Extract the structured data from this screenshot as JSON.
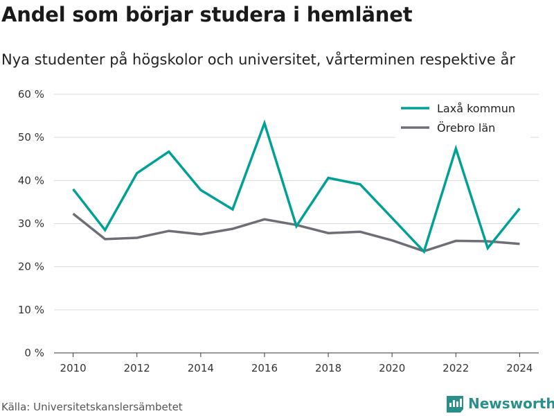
{
  "header": {
    "title": "Andel som börjar studera i hemlänet",
    "subtitle": "Nya studenter på högskolor och universitet, vårterminen respektive år"
  },
  "footer": {
    "source": "Källa: Universitetskanslersämbetet",
    "brand": "Newsworthy",
    "brand_icon": "bar-chart-logo-icon"
  },
  "colors": {
    "laxa": "#00a096",
    "orebro": "#6e6e76",
    "grid": "#d9d9d9",
    "brand": "#2a8f88"
  },
  "chart_data": {
    "type": "line",
    "x": [
      2010,
      2011,
      2012,
      2013,
      2014,
      2015,
      2016,
      2017,
      2018,
      2019,
      2020,
      2021,
      2022,
      2023,
      2024
    ],
    "x_ticks": [
      "2010",
      "2012",
      "2014",
      "2016",
      "2018",
      "2020",
      "2022",
      "2024"
    ],
    "y_ticks": [
      "0 %",
      "10 %",
      "20 %",
      "30 %",
      "40 %",
      "50 %",
      "60 %"
    ],
    "ylim": [
      0,
      60
    ],
    "xlim": [
      2009.4,
      2024.6
    ],
    "grid": true,
    "legend_position": "top-right",
    "series": [
      {
        "name": "Laxå kommun",
        "color": "#00a096",
        "values": [
          38.0,
          28.5,
          41.7,
          46.7,
          37.8,
          33.3,
          53.3,
          29.4,
          40.6,
          39.1,
          31.3,
          23.5,
          47.4,
          24.3,
          33.5
        ]
      },
      {
        "name": "Örebro län",
        "color": "#6e6e76",
        "values": [
          32.3,
          26.4,
          26.7,
          28.3,
          27.5,
          28.8,
          31.0,
          29.7,
          27.8,
          28.1,
          26.1,
          23.6,
          26.0,
          25.9,
          25.3
        ]
      }
    ]
  }
}
